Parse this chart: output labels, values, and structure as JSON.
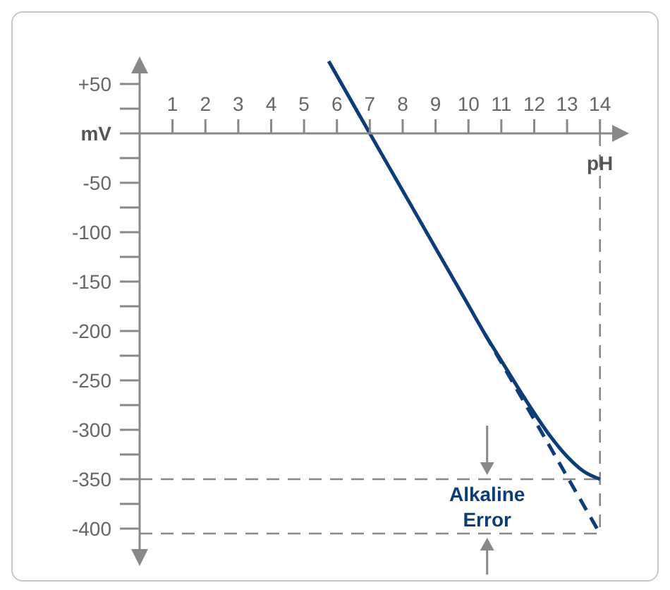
{
  "chart_data": {
    "type": "line",
    "xlabel": "pH",
    "ylabel": "mV",
    "xlim": [
      0,
      14.8
    ],
    "ylim": [
      -435,
      75
    ],
    "xticks": [
      1,
      2,
      3,
      4,
      5,
      6,
      7,
      8,
      9,
      10,
      11,
      12,
      13,
      14
    ],
    "yticks": [
      {
        "value": 50,
        "label": "+50"
      },
      {
        "value": 25,
        "label": null
      },
      {
        "value": 0,
        "label": null
      },
      {
        "value": -25,
        "label": null
      },
      -50,
      {
        "value": -75,
        "label": null
      },
      -100,
      {
        "value": -125,
        "label": null
      },
      -150,
      {
        "value": -175,
        "label": null
      },
      -200,
      {
        "value": -225,
        "label": null
      },
      -250,
      {
        "value": -275,
        "label": null
      },
      -300,
      {
        "value": -325,
        "label": null
      },
      -350,
      {
        "value": -375,
        "label": null
      },
      -400
    ],
    "series": [
      {
        "color": "#0b3d78",
        "line_style": "solid",
        "x": [
          5.75,
          7,
          8,
          9,
          10,
          10.5,
          11,
          11.5,
          12,
          12.5,
          13,
          13.5,
          14
        ],
        "values": [
          73,
          0,
          -58,
          -116,
          -174,
          -203,
          -230,
          -257,
          -283,
          -307,
          -327,
          -342,
          -350
        ]
      },
      {
        "color": "#0b3d78",
        "line_style": "dashed",
        "x": [
          10.5,
          14
        ],
        "values": [
          -203,
          -405
        ]
      }
    ],
    "ref_lines": [
      {
        "axis": "y",
        "value": -350,
        "color": "#888888",
        "line_style": "dashed"
      },
      {
        "axis": "y",
        "value": -405,
        "color": "#888888",
        "line_style": "dashed"
      },
      {
        "axis": "x",
        "value": 14,
        "color": "#888888",
        "line_style": "dashed"
      }
    ],
    "annotations": [
      "Alkaline Error"
    ],
    "marker": "none"
  }
}
